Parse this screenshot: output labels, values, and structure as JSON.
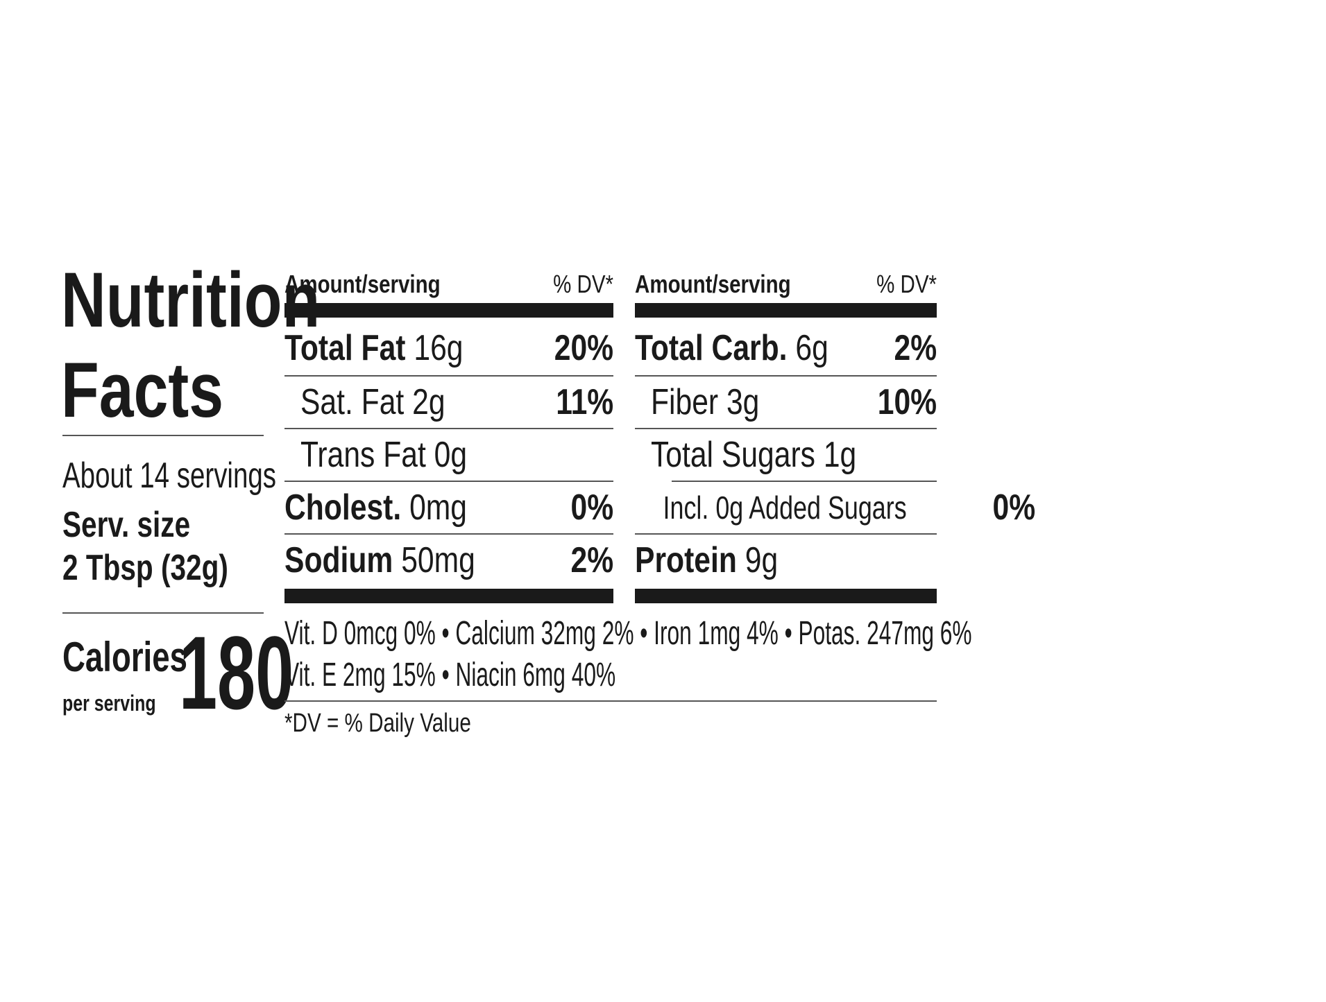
{
  "title_line1": "Nutrition",
  "title_line2": "Facts",
  "servings_per_container": "About 14 servings",
  "serving_size_label": "Serv. size",
  "serving_size_value": "2 Tbsp (32g)",
  "calories_label": "Calories",
  "calories_sublabel": "per serving",
  "calories_value": "180",
  "left_table": {
    "header_amount": "Amount/serving",
    "header_dv": "% DV*",
    "rows": [
      {
        "name": "Total Fat",
        "amount": "16g",
        "dv": "20%",
        "bold": true
      },
      {
        "name": "Sat. Fat",
        "amount": "2g",
        "dv": "11%",
        "bold": false
      },
      {
        "name": "Trans Fat",
        "amount": "0g",
        "dv": "",
        "bold": false
      },
      {
        "name": "Cholest.",
        "amount": "0mg",
        "dv": "0%",
        "bold": true
      },
      {
        "name": "Sodium",
        "amount": "50mg",
        "dv": "2%",
        "bold": true
      }
    ]
  },
  "right_table": {
    "header_amount": "Amount/serving",
    "header_dv": "% DV*",
    "rows": [
      {
        "name": "Total Carb.",
        "amount": "6g",
        "dv": "2%",
        "bold": true
      },
      {
        "name": "Fiber",
        "amount": "3g",
        "dv": "10%",
        "bold": false
      },
      {
        "name": "Total Sugars",
        "amount": "1g",
        "dv": "",
        "bold": false
      },
      {
        "name": "Incl. 0g Added Sugars",
        "amount": "",
        "dv": "0%",
        "bold": false
      },
      {
        "name": "Protein",
        "amount": "9g",
        "dv": "",
        "bold": true
      }
    ]
  },
  "vitamins_line1": "Vit. D 0mcg 0% • Calcium 32mg 2% • Iron 1mg 4% • Potas. 247mg 6%",
  "vitamins_line2": "Vit. E 2mg 15% • Niacin 6mg 40%",
  "footnote": "*DV = % Daily Value"
}
